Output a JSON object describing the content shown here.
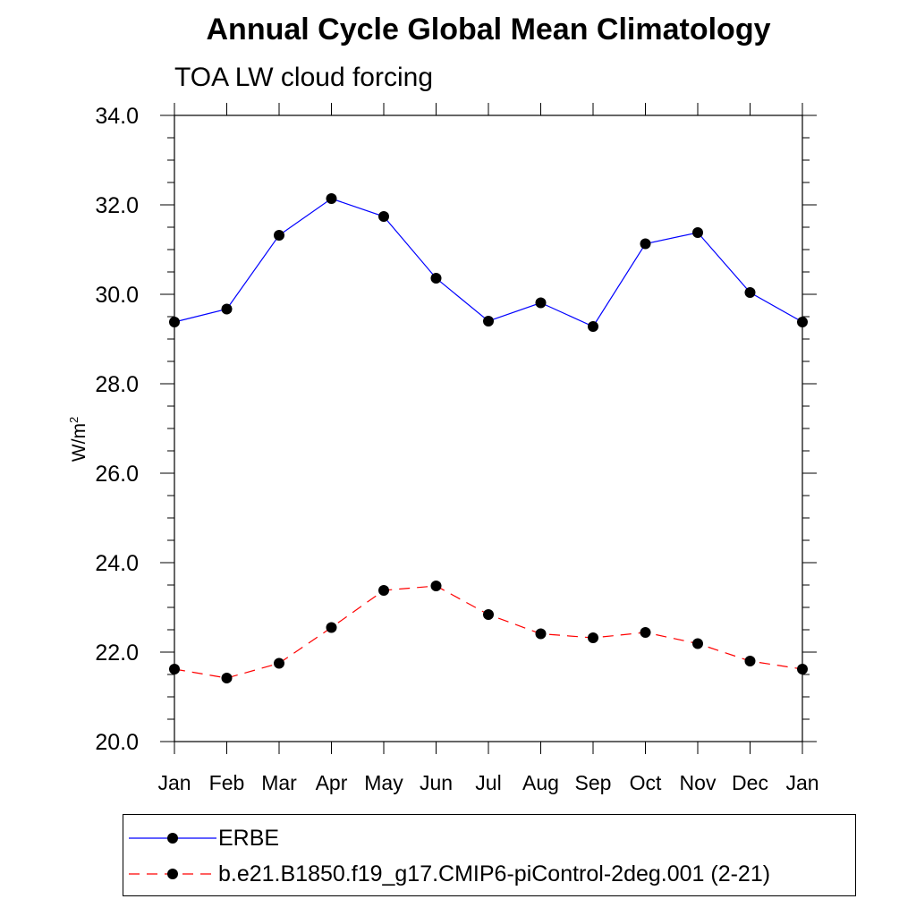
{
  "chart_data": {
    "type": "line",
    "title": "Annual Cycle Global Mean Climatology",
    "subtitle": "TOA LW cloud forcing",
    "xlabel": "",
    "ylabel": "W/m",
    "ylabel_superscript": "2",
    "categories": [
      "Jan",
      "Feb",
      "Mar",
      "Apr",
      "May",
      "Jun",
      "Jul",
      "Aug",
      "Sep",
      "Oct",
      "Nov",
      "Dec",
      "Jan"
    ],
    "ylim": [
      20.0,
      34.0
    ],
    "yticks": [
      "20.0",
      "22.0",
      "24.0",
      "26.0",
      "28.0",
      "30.0",
      "32.0",
      "34.0"
    ],
    "grid": false,
    "legend_position": "bottom",
    "series": [
      {
        "name": "ERBE",
        "color": "#0000ff",
        "line_style": "solid",
        "marker": "filled-circle",
        "values": [
          29.38,
          29.67,
          31.32,
          32.14,
          31.74,
          30.36,
          29.4,
          29.81,
          29.28,
          31.13,
          31.38,
          30.04,
          29.38
        ]
      },
      {
        "name": "b.e21.B1850.f19_g17.CMIP6-piControl-2deg.001 (2-21)",
        "color": "#ff0000",
        "line_style": "dashed",
        "marker": "filled-circle",
        "values": [
          21.62,
          21.42,
          21.75,
          22.55,
          23.38,
          23.48,
          22.84,
          22.41,
          22.32,
          22.44,
          22.19,
          21.8,
          21.62
        ]
      }
    ]
  }
}
